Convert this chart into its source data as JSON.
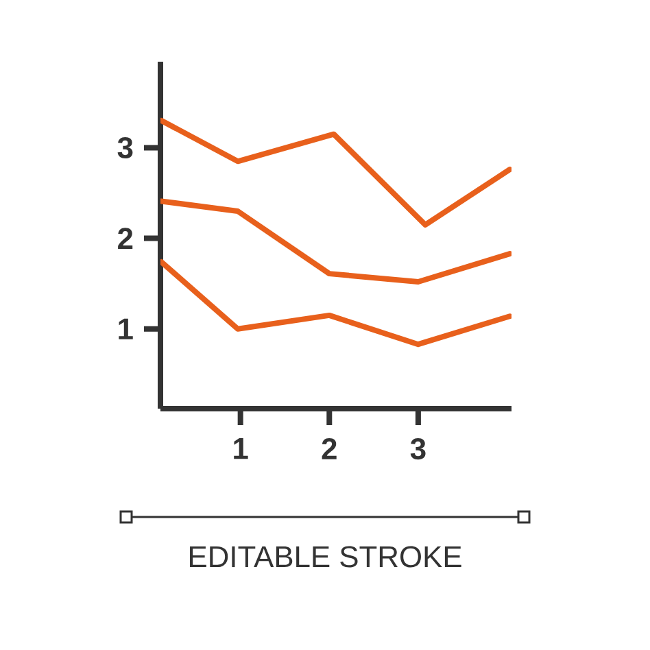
{
  "chart_data": {
    "type": "line",
    "color": "#e8601c",
    "marker": "none",
    "line_style": "solid",
    "grid": false,
    "xlim": [
      0.1,
      4.05
    ],
    "ylim": [
      0.12,
      3.95
    ],
    "xticks": [
      1,
      2,
      3
    ],
    "yticks": [
      1,
      2,
      3
    ],
    "series": [
      {
        "x": [
          0.11,
          0.97,
          2.05,
          3.08,
          4.03
        ],
        "values": [
          3.3,
          2.85,
          3.15,
          2.15,
          2.76
        ]
      },
      {
        "x": [
          0.11,
          0.97,
          2.0,
          3.0,
          4.03
        ],
        "values": [
          2.41,
          2.3,
          1.61,
          1.52,
          1.83
        ]
      },
      {
        "x": [
          0.11,
          0.97,
          2.0,
          3.0,
          4.03
        ],
        "values": [
          1.74,
          1.0,
          1.15,
          0.83,
          1.14
        ]
      }
    ],
    "annotations": [
      "EDITABLE STROKE"
    ]
  }
}
